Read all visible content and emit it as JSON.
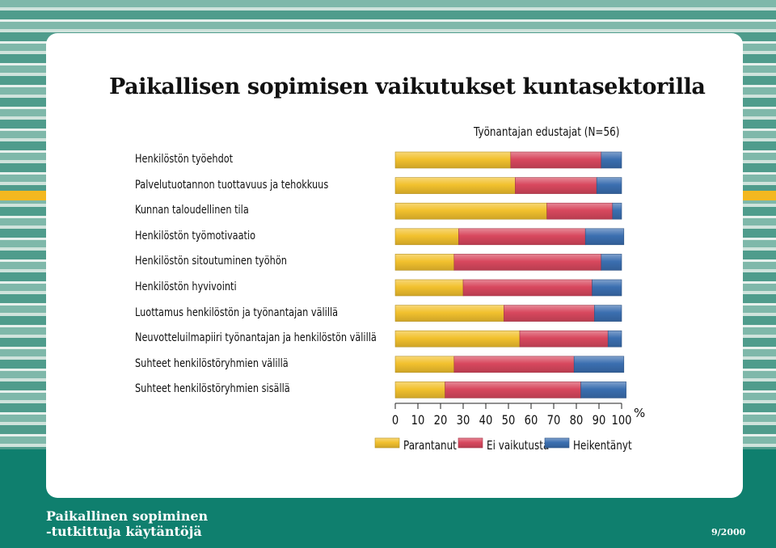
{
  "header": {
    "title": "Paikallisen sopimisen vaikutukset kuntasektorilla"
  },
  "footer": {
    "line1": "Paikallinen sopiminen",
    "line2": "-tutkittuja käytäntöjä",
    "issue": "9/2000"
  },
  "colors": {
    "parantanut": "#f2c12e",
    "ei_vaikutusta": "#d8485e",
    "heikentanyt": "#3b6fb0",
    "frame": "#0f7f6e"
  },
  "chart_data": {
    "type": "bar",
    "orientation": "horizontal",
    "stacked": true,
    "title": "Työnantajan edustajat (N=56)",
    "xunit": "%",
    "xlim": [
      0,
      100
    ],
    "xticks": [
      "0",
      "10",
      "20",
      "30",
      "40",
      "50",
      "60",
      "70",
      "80",
      "90",
      "100"
    ],
    "categories": [
      "Henkilöstön työehdot",
      "Palvelutuotannon tuottavuus ja tehokkuus",
      "Kunnan taloudellinen tila",
      "Henkilöstön työmotivaatio",
      "Henkilöstön sitoutuminen työhön",
      "Henkilöstön hyvivointi",
      "Luottamus henkilöstön ja työnantajan välillä",
      "Neuvotteluilmapiiri työnantajan ja henkilöstön välillä",
      "Suhteet henkilöstöryhmien välillä",
      "Suhteet henkilöstöryhmien sisällä"
    ],
    "series": [
      {
        "name": "Parantanut",
        "values": [
          51,
          53,
          67,
          28,
          26,
          30,
          48,
          55,
          26,
          22
        ]
      },
      {
        "name": "Ei vaikutusta",
        "values": [
          40,
          36,
          29,
          56,
          65,
          57,
          40,
          39,
          53,
          60
        ]
      },
      {
        "name": "Heikentänyt",
        "values": [
          9,
          11,
          4,
          17,
          9,
          13,
          12,
          6,
          22,
          20
        ]
      }
    ],
    "legend": {
      "placement": "bottom"
    }
  }
}
